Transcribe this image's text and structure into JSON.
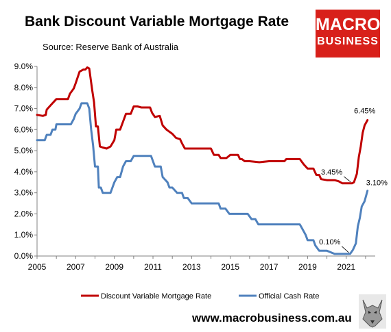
{
  "header": {
    "title": "Bank Discount Variable Mortgage Rate",
    "source": "Source: Reserve Bank of Australia"
  },
  "logo": {
    "line1": "MACRO",
    "line2": "BUSINESS"
  },
  "footer": {
    "website": "www.macrobusiness.com.au"
  },
  "colors": {
    "mortgage": "#c00000",
    "cash": "#4f81bd",
    "logo_bg": "#d8201a",
    "axis": "#808080"
  },
  "chart_data": {
    "type": "line",
    "xlim": [
      2005,
      2022.5
    ],
    "ylim": [
      0,
      9
    ],
    "x_ticks": [
      2005,
      2007,
      2009,
      2011,
      2013,
      2015,
      2017,
      2019,
      2021
    ],
    "y_ticks": [
      "0.0%",
      "1.0%",
      "2.0%",
      "3.0%",
      "4.0%",
      "5.0%",
      "6.0%",
      "7.0%",
      "8.0%",
      "9.0%"
    ],
    "legend_position": "bottom",
    "series": [
      {
        "name": "Discount Variable Mortgage Rate",
        "color": "#c00000",
        "points": [
          [
            2005.0,
            6.7
          ],
          [
            2005.3,
            6.65
          ],
          [
            2005.45,
            6.7
          ],
          [
            2005.5,
            6.95
          ],
          [
            2005.75,
            7.2
          ],
          [
            2006.0,
            7.45
          ],
          [
            2006.35,
            7.45
          ],
          [
            2006.6,
            7.45
          ],
          [
            2006.7,
            7.7
          ],
          [
            2006.9,
            7.95
          ],
          [
            2007.0,
            8.2
          ],
          [
            2007.2,
            8.75
          ],
          [
            2007.4,
            8.85
          ],
          [
            2007.5,
            8.85
          ],
          [
            2007.6,
            8.95
          ],
          [
            2007.7,
            8.9
          ],
          [
            2007.85,
            7.9
          ],
          [
            2007.95,
            7.3
          ],
          [
            2008.05,
            6.15
          ],
          [
            2008.15,
            6.15
          ],
          [
            2008.25,
            5.2
          ],
          [
            2008.4,
            5.15
          ],
          [
            2008.6,
            5.1
          ],
          [
            2008.8,
            5.2
          ],
          [
            2009.0,
            5.5
          ],
          [
            2009.1,
            6.0
          ],
          [
            2009.3,
            6.0
          ],
          [
            2009.5,
            6.5
          ],
          [
            2009.6,
            6.75
          ],
          [
            2009.85,
            6.75
          ],
          [
            2010.0,
            7.1
          ],
          [
            2010.2,
            7.1
          ],
          [
            2010.4,
            7.05
          ],
          [
            2010.6,
            7.05
          ],
          [
            2010.85,
            7.05
          ],
          [
            2010.95,
            6.8
          ],
          [
            2011.1,
            6.6
          ],
          [
            2011.35,
            6.65
          ],
          [
            2011.5,
            6.2
          ],
          [
            2011.7,
            6.0
          ],
          [
            2012.0,
            5.8
          ],
          [
            2012.2,
            5.6
          ],
          [
            2012.4,
            5.55
          ],
          [
            2012.5,
            5.35
          ],
          [
            2012.65,
            5.1
          ],
          [
            2012.9,
            5.1
          ],
          [
            2013.5,
            5.1
          ],
          [
            2014.0,
            5.1
          ],
          [
            2014.15,
            4.8
          ],
          [
            2014.4,
            4.8
          ],
          [
            2014.5,
            4.65
          ],
          [
            2014.8,
            4.65
          ],
          [
            2015.0,
            4.8
          ],
          [
            2015.4,
            4.8
          ],
          [
            2015.5,
            4.6
          ],
          [
            2015.6,
            4.6
          ],
          [
            2015.75,
            4.5
          ],
          [
            2016.0,
            4.5
          ],
          [
            2016.5,
            4.45
          ],
          [
            2017.0,
            4.5
          ],
          [
            2017.5,
            4.5
          ],
          [
            2017.8,
            4.5
          ],
          [
            2017.9,
            4.6
          ],
          [
            2018.3,
            4.6
          ],
          [
            2018.6,
            4.6
          ],
          [
            2018.8,
            4.35
          ],
          [
            2019.0,
            4.15
          ],
          [
            2019.3,
            4.15
          ],
          [
            2019.45,
            3.85
          ],
          [
            2019.6,
            3.85
          ],
          [
            2019.7,
            3.65
          ],
          [
            2020.0,
            3.6
          ],
          [
            2020.4,
            3.6
          ],
          [
            2020.6,
            3.55
          ],
          [
            2020.8,
            3.45
          ],
          [
            2021.0,
            3.45
          ],
          [
            2021.3,
            3.45
          ],
          [
            2021.4,
            3.5
          ],
          [
            2021.55,
            3.9
          ],
          [
            2021.65,
            4.7
          ],
          [
            2021.75,
            5.2
          ],
          [
            2021.85,
            5.85
          ],
          [
            2021.95,
            6.2
          ],
          [
            2022.1,
            6.45
          ]
        ]
      },
      {
        "name": "Official Cash Rate",
        "color": "#4f81bd",
        "points": [
          [
            2005.0,
            5.5
          ],
          [
            2005.4,
            5.5
          ],
          [
            2005.5,
            5.75
          ],
          [
            2005.7,
            5.75
          ],
          [
            2005.8,
            6.0
          ],
          [
            2005.95,
            6.0
          ],
          [
            2006.0,
            6.25
          ],
          [
            2006.5,
            6.25
          ],
          [
            2006.75,
            6.25
          ],
          [
            2006.9,
            6.5
          ],
          [
            2007.0,
            6.75
          ],
          [
            2007.2,
            7.0
          ],
          [
            2007.3,
            7.25
          ],
          [
            2007.6,
            7.25
          ],
          [
            2007.7,
            7.0
          ],
          [
            2007.8,
            6.0
          ],
          [
            2007.9,
            5.25
          ],
          [
            2008.0,
            4.25
          ],
          [
            2008.15,
            4.25
          ],
          [
            2008.2,
            3.25
          ],
          [
            2008.3,
            3.25
          ],
          [
            2008.4,
            3.0
          ],
          [
            2008.8,
            3.0
          ],
          [
            2008.9,
            3.25
          ],
          [
            2009.0,
            3.5
          ],
          [
            2009.15,
            3.75
          ],
          [
            2009.3,
            3.75
          ],
          [
            2009.45,
            4.25
          ],
          [
            2009.6,
            4.5
          ],
          [
            2009.85,
            4.5
          ],
          [
            2010.0,
            4.75
          ],
          [
            2010.5,
            4.75
          ],
          [
            2010.9,
            4.75
          ],
          [
            2011.0,
            4.5
          ],
          [
            2011.1,
            4.25
          ],
          [
            2011.4,
            4.25
          ],
          [
            2011.5,
            3.75
          ],
          [
            2011.75,
            3.5
          ],
          [
            2011.85,
            3.25
          ],
          [
            2012.0,
            3.25
          ],
          [
            2012.25,
            3.0
          ],
          [
            2012.5,
            3.0
          ],
          [
            2012.6,
            2.75
          ],
          [
            2012.8,
            2.75
          ],
          [
            2013.0,
            2.5
          ],
          [
            2013.5,
            2.5
          ],
          [
            2014.0,
            2.5
          ],
          [
            2014.4,
            2.5
          ],
          [
            2014.5,
            2.25
          ],
          [
            2014.75,
            2.25
          ],
          [
            2014.95,
            2.0
          ],
          [
            2015.5,
            2.0
          ],
          [
            2015.9,
            2.0
          ],
          [
            2016.1,
            1.75
          ],
          [
            2016.3,
            1.75
          ],
          [
            2016.45,
            1.5
          ],
          [
            2016.8,
            1.5
          ],
          [
            2017.5,
            1.5
          ],
          [
            2018.0,
            1.5
          ],
          [
            2018.6,
            1.5
          ],
          [
            2018.75,
            1.25
          ],
          [
            2018.9,
            1.0
          ],
          [
            2019.0,
            0.75
          ],
          [
            2019.3,
            0.75
          ],
          [
            2019.4,
            0.5
          ],
          [
            2019.6,
            0.25
          ],
          [
            2020.0,
            0.25
          ],
          [
            2020.4,
            0.1
          ],
          [
            2020.8,
            0.1
          ],
          [
            2021.0,
            0.1
          ],
          [
            2021.2,
            0.1
          ],
          [
            2021.35,
            0.3
          ],
          [
            2021.5,
            0.6
          ],
          [
            2021.6,
            1.4
          ],
          [
            2021.7,
            1.8
          ],
          [
            2021.8,
            2.35
          ],
          [
            2021.95,
            2.6
          ],
          [
            2022.1,
            3.1
          ]
        ]
      }
    ],
    "annotations": [
      {
        "text": "6.45%",
        "x": 2022.1,
        "y": 6.45,
        "series": "mortgage"
      },
      {
        "text": "3.45%",
        "x": 2021.3,
        "y": 3.45,
        "series": "mortgage"
      },
      {
        "text": "3.10%",
        "x": 2022.1,
        "y": 3.1,
        "series": "cash"
      },
      {
        "text": "0.10%",
        "x": 2021.2,
        "y": 0.1,
        "series": "cash"
      }
    ]
  }
}
